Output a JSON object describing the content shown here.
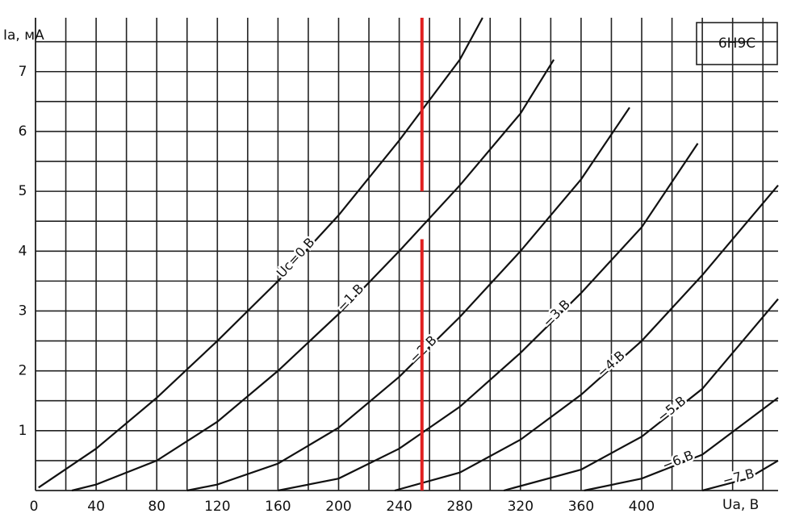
{
  "chart_data": {
    "type": "line",
    "title": "6Н9С",
    "x_label": "Ua, В",
    "y_label": "Ia, мА",
    "xlim": [
      0,
      490
    ],
    "ylim": [
      0,
      7.9
    ],
    "xticks": [
      0,
      40,
      80,
      120,
      160,
      200,
      240,
      280,
      320,
      360,
      400
    ],
    "yticks": [
      1,
      2,
      3,
      4,
      5,
      6,
      7
    ],
    "xgrid_step": 20,
    "ygrid_step": 0.5,
    "grid": true,
    "series": [
      {
        "name": "Uc=0 В",
        "color": "#111111",
        "x": [
          2,
          40,
          80,
          120,
          160,
          200,
          240,
          280,
          295
        ],
        "values": [
          0.05,
          0.7,
          1.55,
          2.5,
          3.5,
          4.6,
          5.85,
          7.2,
          7.9
        ]
      },
      {
        "name": "−1 В",
        "color": "#111111",
        "x": [
          24,
          40,
          80,
          120,
          160,
          200,
          240,
          280,
          320,
          342
        ],
        "values": [
          0,
          0.1,
          0.5,
          1.15,
          2.0,
          2.95,
          4.0,
          5.1,
          6.3,
          7.2
        ]
      },
      {
        "name": "−2 В",
        "color": "#111111",
        "x": [
          100,
          120,
          160,
          200,
          240,
          280,
          320,
          360,
          392
        ],
        "values": [
          0,
          0.1,
          0.45,
          1.05,
          1.9,
          2.9,
          4.0,
          5.2,
          6.4
        ]
      },
      {
        "name": "−3 В",
        "color": "#111111",
        "x": [
          160,
          200,
          240,
          280,
          320,
          360,
          400,
          437
        ],
        "values": [
          0,
          0.2,
          0.7,
          1.4,
          2.3,
          3.3,
          4.4,
          5.8
        ]
      },
      {
        "name": "−4 В",
        "color": "#111111",
        "x": [
          237,
          280,
          320,
          360,
          400,
          440,
          490
        ],
        "values": [
          0,
          0.3,
          0.85,
          1.6,
          2.5,
          3.6,
          5.1
        ]
      },
      {
        "name": "−5 В",
        "color": "#111111",
        "x": [
          309,
          360,
          400,
          440,
          490
        ],
        "values": [
          0,
          0.35,
          0.9,
          1.7,
          3.2
        ]
      },
      {
        "name": "−6 В",
        "color": "#111111",
        "x": [
          362,
          400,
          440,
          490
        ],
        "values": [
          0,
          0.2,
          0.6,
          1.55
        ]
      },
      {
        "name": "−7 В",
        "color": "#111111",
        "x": [
          440,
          470,
          490
        ],
        "values": [
          0,
          0.2,
          0.5
        ]
      }
    ],
    "marker": {
      "x": 255,
      "color": "#e02020",
      "segments": [
        [
          0,
          4.2
        ],
        [
          5.0,
          7.9
        ]
      ]
    }
  }
}
